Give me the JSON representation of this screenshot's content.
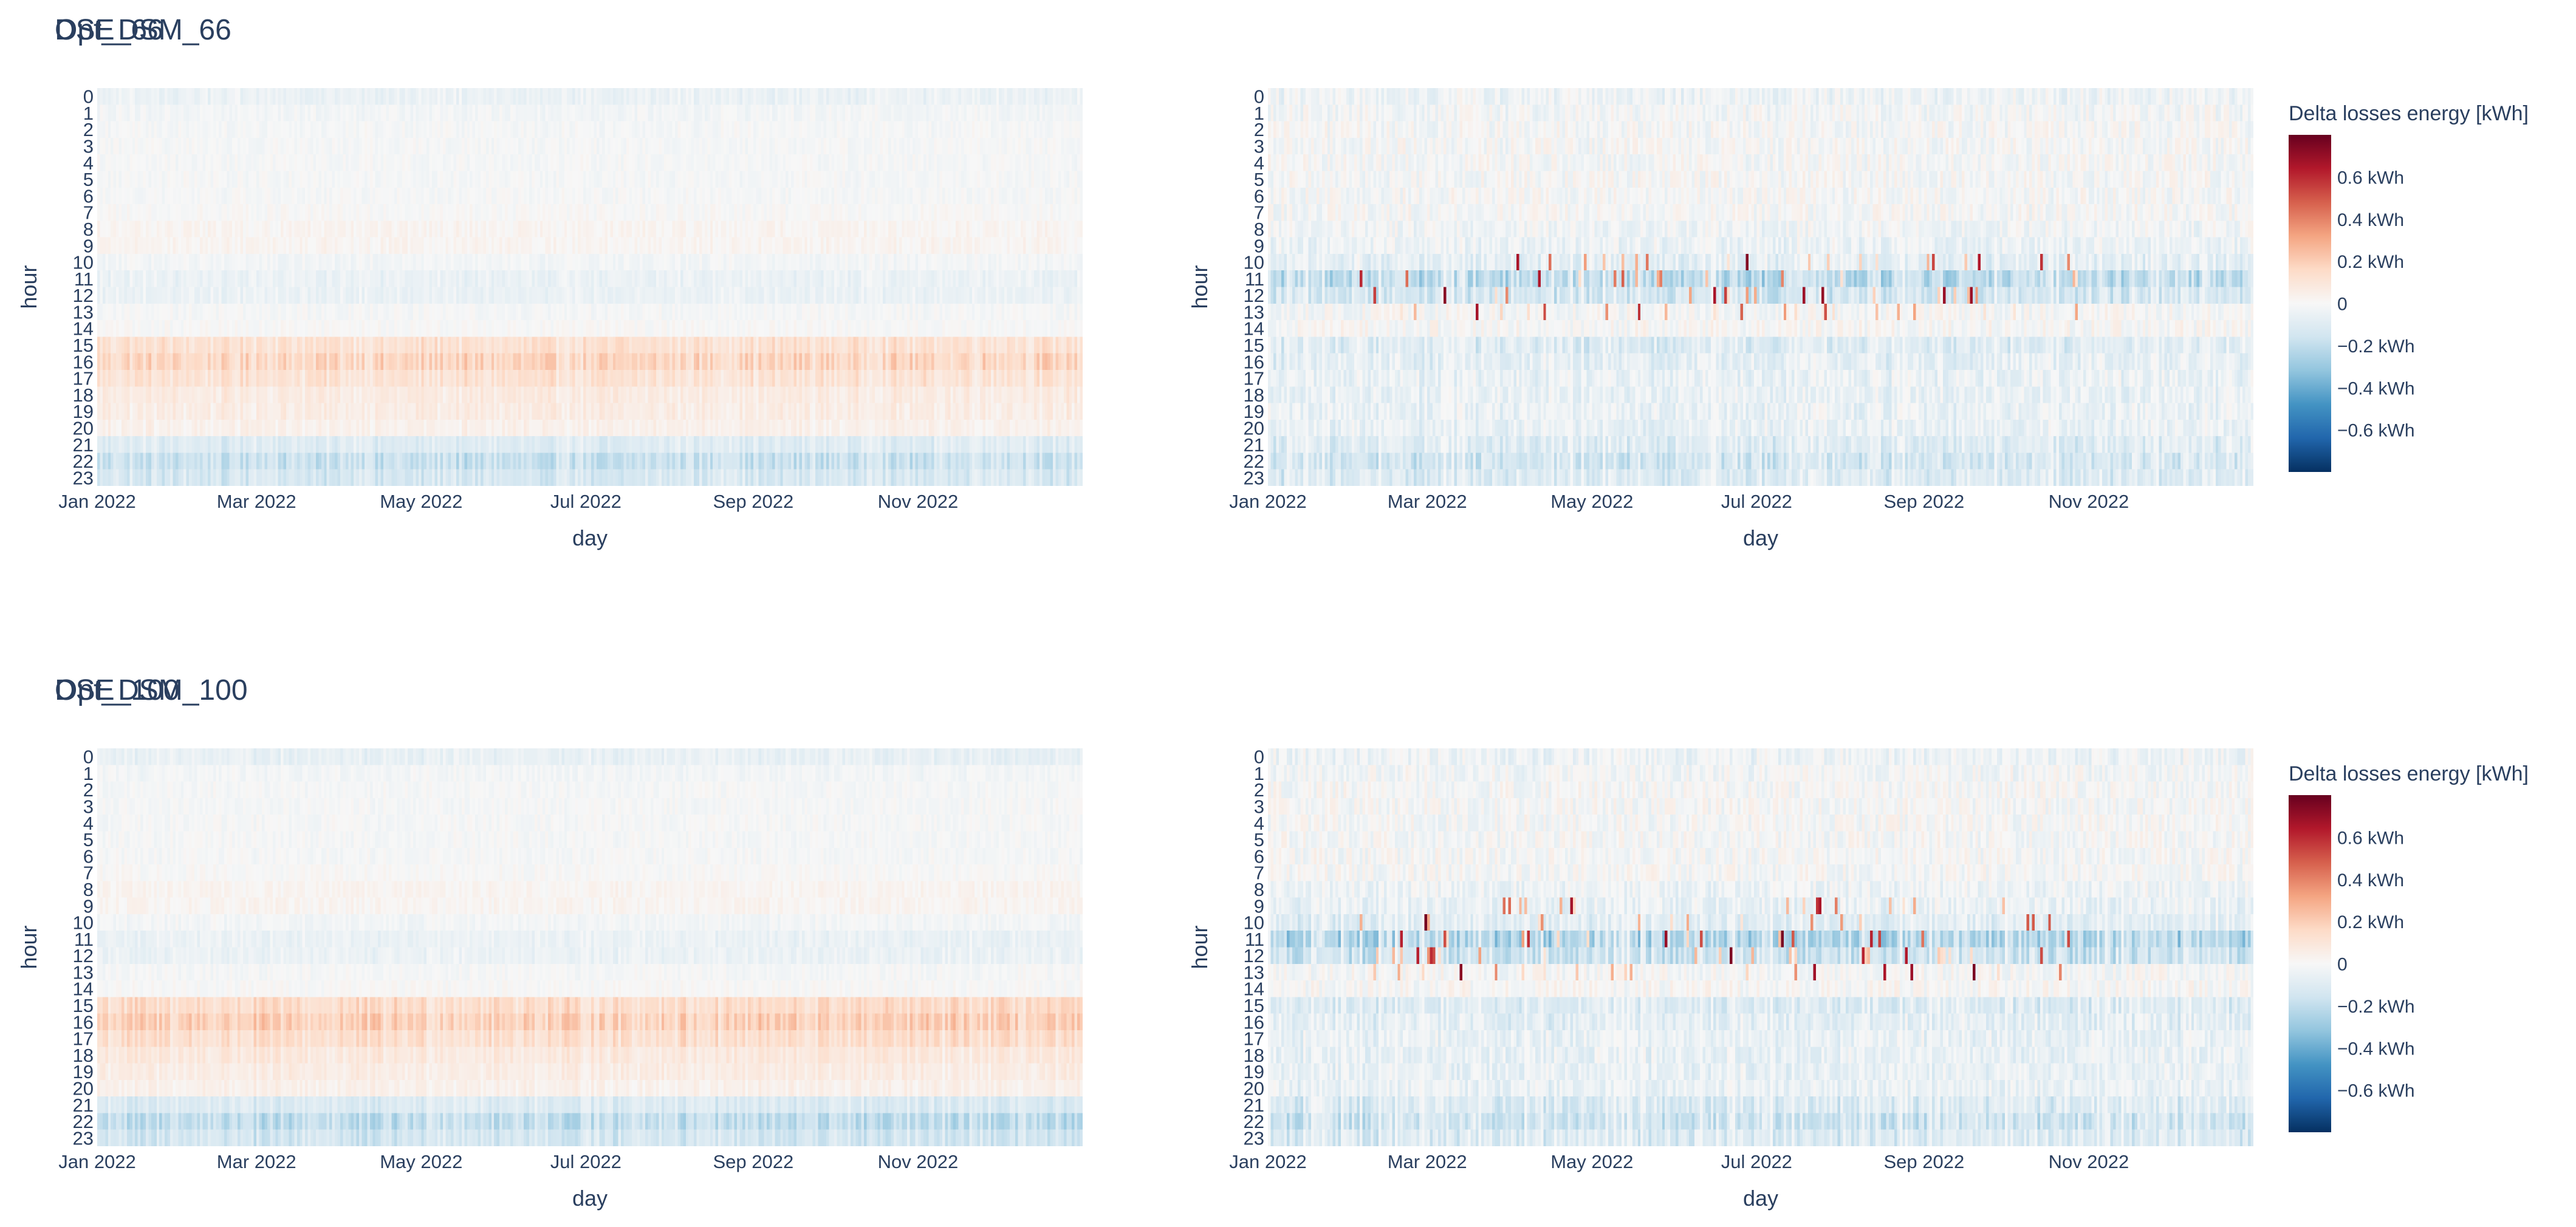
{
  "chart_data": [
    {
      "type": "heatmap",
      "title": "DSE_66",
      "xlabel": "day",
      "ylabel": "hour",
      "x_ticks": [
        "Jan 2022",
        "Mar 2022",
        "May 2022",
        "Jul 2022",
        "Sep 2022",
        "Nov 2022"
      ],
      "y_ticks": [
        "0",
        "1",
        "2",
        "3",
        "4",
        "5",
        "6",
        "7",
        "8",
        "9",
        "10",
        "11",
        "12",
        "13",
        "14",
        "15",
        "16",
        "17",
        "18",
        "19",
        "20",
        "21",
        "22",
        "23"
      ],
      "x_range": [
        "2022-01-01",
        "2022-12-31"
      ],
      "days": 365,
      "hours": 24,
      "z_range": [
        -0.8,
        0.8
      ],
      "z_unit": "kWh",
      "hour_profile_kwh": [
        -0.05,
        -0.02,
        -0.01,
        -0.01,
        -0.01,
        -0.01,
        -0.01,
        0.0,
        0.02,
        0.02,
        -0.02,
        -0.05,
        -0.05,
        -0.01,
        0.0,
        0.12,
        0.16,
        0.11,
        0.07,
        0.06,
        0.04,
        -0.1,
        -0.17,
        -0.13
      ],
      "variability_kwh": 0.03
    },
    {
      "type": "heatmap",
      "title": "Opt_DSM_66",
      "xlabel": "day",
      "ylabel": "hour",
      "x_ticks": [
        "Jan 2022",
        "Mar 2022",
        "May 2022",
        "Jul 2022",
        "Sep 2022",
        "Nov 2022"
      ],
      "y_ticks": [
        "0",
        "1",
        "2",
        "3",
        "4",
        "5",
        "6",
        "7",
        "8",
        "9",
        "10",
        "11",
        "12",
        "13",
        "14",
        "15",
        "16",
        "17",
        "18",
        "19",
        "20",
        "21",
        "22",
        "23"
      ],
      "x_range": [
        "2022-01-01",
        "2022-12-31"
      ],
      "days": 365,
      "hours": 24,
      "z_range": [
        -0.8,
        0.8
      ],
      "z_unit": "kWh",
      "hour_profile_kwh": [
        -0.04,
        -0.02,
        -0.01,
        -0.01,
        -0.01,
        -0.01,
        -0.01,
        -0.01,
        -0.03,
        -0.05,
        -0.08,
        -0.2,
        -0.14,
        -0.01,
        0.0,
        -0.1,
        -0.08,
        -0.06,
        -0.06,
        -0.06,
        -0.06,
        -0.1,
        -0.14,
        -0.11
      ],
      "variability_kwh": 0.07,
      "spike_hours": [
        10,
        11,
        12,
        13
      ],
      "spike_max_kwh": 0.75
    },
    {
      "type": "heatmap",
      "title": "DSE_100",
      "xlabel": "day",
      "ylabel": "hour",
      "x_ticks": [
        "Jan 2022",
        "Mar 2022",
        "May 2022",
        "Jul 2022",
        "Sep 2022",
        "Nov 2022"
      ],
      "y_ticks": [
        "0",
        "1",
        "2",
        "3",
        "4",
        "5",
        "6",
        "7",
        "8",
        "9",
        "10",
        "11",
        "12",
        "13",
        "14",
        "15",
        "16",
        "17",
        "18",
        "19",
        "20",
        "21",
        "22",
        "23"
      ],
      "x_range": [
        "2022-01-01",
        "2022-12-31"
      ],
      "days": 365,
      "hours": 24,
      "z_range": [
        -0.8,
        0.8
      ],
      "z_unit": "kWh",
      "hour_profile_kwh": [
        -0.06,
        -0.02,
        -0.01,
        -0.01,
        -0.01,
        -0.01,
        -0.01,
        0.0,
        0.02,
        0.02,
        -0.02,
        -0.05,
        -0.05,
        -0.01,
        0.0,
        0.14,
        0.18,
        0.13,
        0.08,
        0.06,
        0.04,
        -0.11,
        -0.19,
        -0.14
      ],
      "variability_kwh": 0.03
    },
    {
      "type": "heatmap",
      "title": "Opt_DSM_100",
      "xlabel": "day",
      "ylabel": "hour",
      "x_ticks": [
        "Jan 2022",
        "Mar 2022",
        "May 2022",
        "Jul 2022",
        "Sep 2022",
        "Nov 2022"
      ],
      "y_ticks": [
        "0",
        "1",
        "2",
        "3",
        "4",
        "5",
        "6",
        "7",
        "8",
        "9",
        "10",
        "11",
        "12",
        "13",
        "14",
        "15",
        "16",
        "17",
        "18",
        "19",
        "20",
        "21",
        "22",
        "23"
      ],
      "x_range": [
        "2022-01-01",
        "2022-12-31"
      ],
      "days": 365,
      "hours": 24,
      "z_range": [
        -0.8,
        0.8
      ],
      "z_unit": "kWh",
      "hour_profile_kwh": [
        -0.04,
        -0.02,
        -0.01,
        -0.01,
        -0.01,
        -0.01,
        -0.01,
        -0.01,
        -0.04,
        -0.06,
        -0.09,
        -0.22,
        -0.16,
        -0.01,
        0.0,
        -0.1,
        -0.08,
        -0.06,
        -0.06,
        -0.06,
        -0.06,
        -0.11,
        -0.15,
        -0.11
      ],
      "variability_kwh": 0.07,
      "spike_hours": [
        9,
        10,
        11,
        12,
        13
      ],
      "spike_max_kwh": 0.78
    }
  ],
  "colorbar": {
    "title": "Delta losses energy [kWh]",
    "tick_values": [
      0.6,
      0.4,
      0.2,
      0,
      -0.2,
      -0.4,
      -0.6
    ],
    "tick_labels": [
      "0.6 kWh",
      "0.4 kWh",
      "0.2 kWh",
      "0",
      "−0.2 kWh",
      "−0.4 kWh",
      "−0.6 kWh"
    ],
    "range": [
      -0.8,
      0.8
    ],
    "colorscale": [
      "#053061",
      "#2166ac",
      "#4393c3",
      "#92c5de",
      "#d1e5f0",
      "#f7f7f7",
      "#fddbc7",
      "#f4a582",
      "#d6604d",
      "#b2182b",
      "#67001f"
    ]
  },
  "colors": {
    "text": "#2a3f5f",
    "background": "#ffffff"
  }
}
